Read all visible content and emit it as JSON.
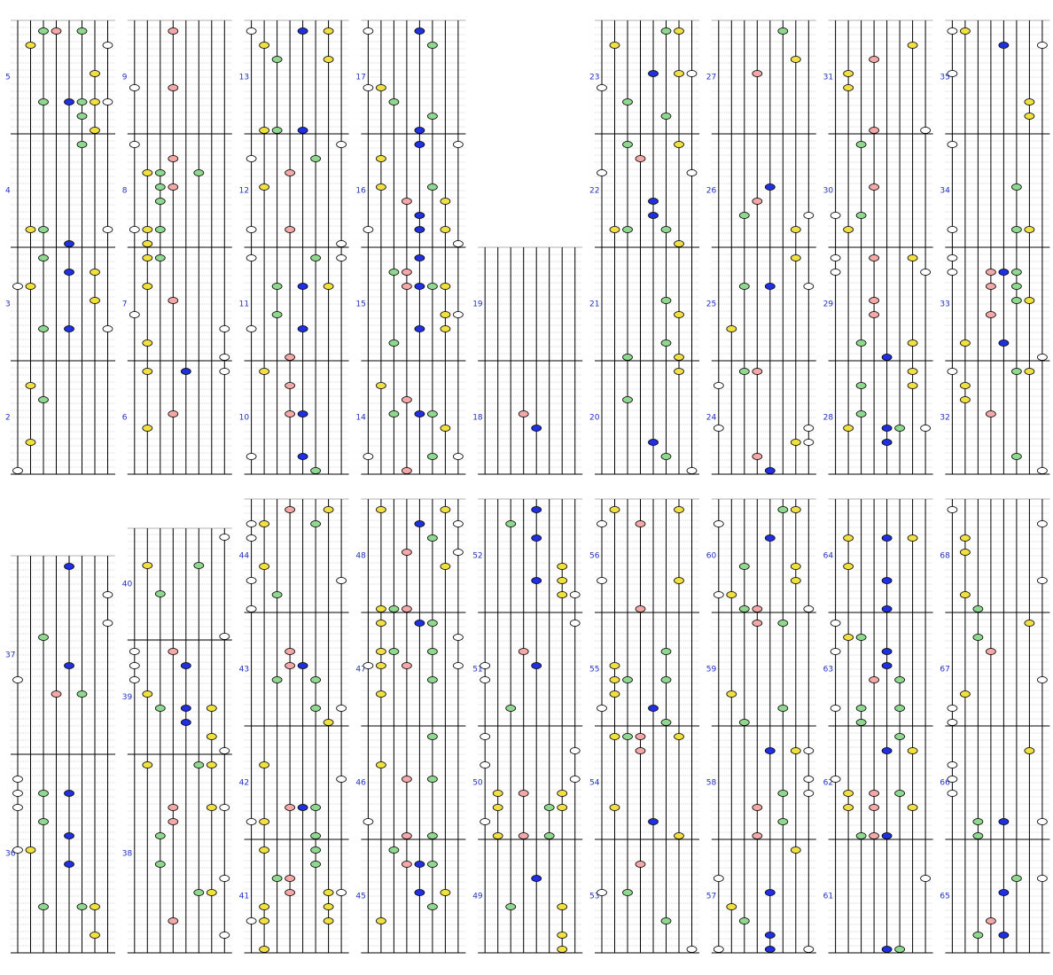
{
  "rows": [
    {
      "columns": [
        {
          "measures": [
            2,
            3,
            4,
            5
          ]
        },
        {
          "measures": [
            6,
            7,
            8,
            9
          ]
        },
        {
          "measures": [
            10,
            11,
            12,
            13
          ]
        },
        {
          "measures": [
            14,
            15,
            16,
            17
          ]
        },
        {
          "measures": [
            18,
            19
          ]
        },
        {
          "measures": [
            20,
            21,
            22,
            23
          ]
        },
        {
          "measures": [
            24,
            25,
            26,
            27
          ]
        },
        {
          "measures": [
            28,
            29,
            30,
            31
          ]
        },
        {
          "measures": [
            32,
            33,
            34,
            35
          ]
        }
      ]
    },
    {
      "columns": [
        {
          "measures": [
            36,
            37
          ]
        },
        {
          "measures": [
            38,
            39,
            40
          ]
        },
        {
          "measures": [
            41,
            42,
            43,
            44
          ]
        },
        {
          "measures": [
            45,
            46,
            47,
            48
          ]
        },
        {
          "measures": [
            49,
            50,
            51,
            52
          ]
        },
        {
          "measures": [
            53,
            54,
            55,
            56
          ]
        },
        {
          "measures": [
            57,
            58,
            59,
            60
          ]
        },
        {
          "measures": [
            61,
            62,
            63,
            64
          ]
        },
        {
          "measures": [
            65,
            66,
            67,
            68
          ]
        }
      ]
    }
  ]
}
